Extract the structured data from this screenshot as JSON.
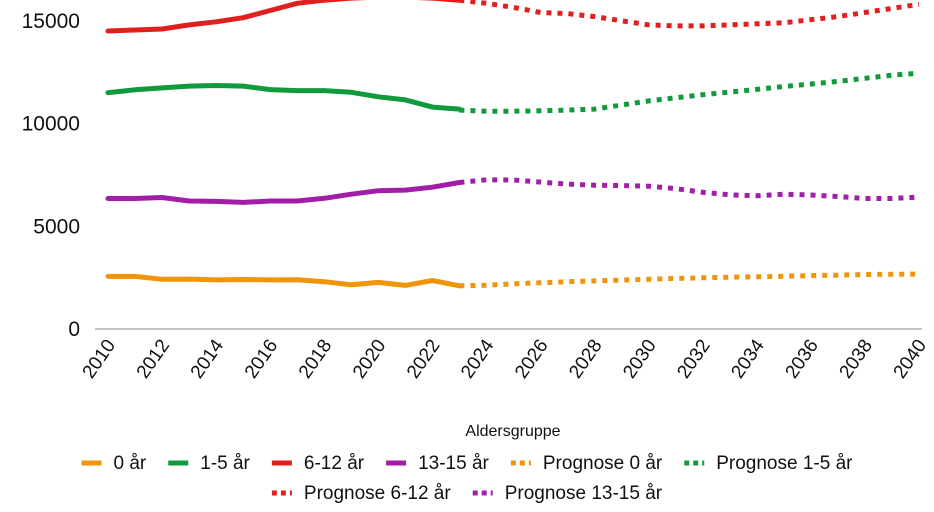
{
  "chart_data": {
    "type": "line",
    "xlabel": "Aldersgruppe",
    "ylabel": "",
    "xlim": [
      2010,
      2040
    ],
    "ylim": [
      0,
      16500
    ],
    "x_ticks": [
      "2010",
      "2012",
      "2014",
      "2016",
      "2018",
      "2020",
      "2022",
      "2024",
      "2026",
      "2028",
      "2030",
      "2032",
      "2034",
      "2036",
      "2038",
      "2040"
    ],
    "y_ticks": [
      "0",
      "5000",
      "10000",
      "15000"
    ],
    "grid": false,
    "legend_position": "bottom",
    "series": [
      {
        "name": "0 år",
        "color": "#f0940a",
        "style": "solid",
        "x": [
          2010,
          2011,
          2012,
          2013,
          2014,
          2015,
          2016,
          2017,
          2018,
          2019,
          2020,
          2021,
          2022,
          2023
        ],
        "values": [
          2560,
          2560,
          2420,
          2430,
          2390,
          2410,
          2390,
          2400,
          2300,
          2150,
          2270,
          2120,
          2360,
          2100
        ]
      },
      {
        "name": "1-5 år",
        "color": "#109a3c",
        "style": "solid",
        "x": [
          2010,
          2011,
          2012,
          2013,
          2014,
          2015,
          2016,
          2017,
          2018,
          2019,
          2020,
          2021,
          2022,
          2023
        ],
        "values": [
          11500,
          11640,
          11730,
          11820,
          11850,
          11820,
          11650,
          11600,
          11600,
          11520,
          11300,
          11150,
          10800,
          10700
        ]
      },
      {
        "name": "6-12 år",
        "color": "#e21f1f",
        "style": "solid",
        "x": [
          2010,
          2011,
          2012,
          2013,
          2014,
          2015,
          2016,
          2017,
          2018,
          2019,
          2020,
          2021,
          2022,
          2023
        ],
        "values": [
          14500,
          14550,
          14600,
          14800,
          14950,
          15150,
          15500,
          15850,
          16000,
          16100,
          16150,
          16150,
          16100,
          16000
        ]
      },
      {
        "name": "13-15 år",
        "color": "#a31ea8",
        "style": "solid",
        "x": [
          2010,
          2011,
          2012,
          2013,
          2014,
          2015,
          2016,
          2017,
          2018,
          2019,
          2020,
          2021,
          2022,
          2023
        ],
        "values": [
          6350,
          6350,
          6400,
          6230,
          6210,
          6160,
          6230,
          6230,
          6360,
          6560,
          6730,
          6760,
          6900,
          7130
        ]
      },
      {
        "name": "Prognose 0 år",
        "color": "#f0940a",
        "style": "dotted",
        "x": [
          2023,
          2024,
          2025,
          2026,
          2027,
          2028,
          2029,
          2030,
          2031,
          2032,
          2033,
          2034,
          2035,
          2036,
          2037,
          2038,
          2039,
          2040
        ],
        "values": [
          2100,
          2130,
          2200,
          2250,
          2300,
          2340,
          2380,
          2420,
          2460,
          2490,
          2520,
          2540,
          2570,
          2600,
          2620,
          2650,
          2660,
          2670
        ]
      },
      {
        "name": "Prognose 1-5 år",
        "color": "#109a3c",
        "style": "dotted",
        "x": [
          2023,
          2024,
          2025,
          2026,
          2027,
          2028,
          2029,
          2030,
          2031,
          2032,
          2033,
          2034,
          2035,
          2036,
          2037,
          2038,
          2039,
          2040
        ],
        "values": [
          10650,
          10600,
          10600,
          10620,
          10650,
          10700,
          10900,
          11100,
          11250,
          11400,
          11530,
          11660,
          11800,
          11920,
          12050,
          12200,
          12350,
          12450
        ]
      },
      {
        "name": "Prognose 6-12 år",
        "color": "#e21f1f",
        "style": "dotted",
        "x": [
          2023,
          2024,
          2025,
          2026,
          2027,
          2028,
          2029,
          2030,
          2031,
          2032,
          2033,
          2034,
          2035,
          2036,
          2037,
          2038,
          2039,
          2040
        ],
        "values": [
          16000,
          15850,
          15650,
          15400,
          15350,
          15200,
          15000,
          14800,
          14750,
          14750,
          14800,
          14850,
          14900,
          15050,
          15200,
          15400,
          15600,
          15800
        ]
      },
      {
        "name": "Prognose 13-15 år",
        "color": "#a31ea8",
        "style": "dotted",
        "x": [
          2023,
          2024,
          2025,
          2026,
          2027,
          2028,
          2029,
          2030,
          2031,
          2032,
          2033,
          2034,
          2035,
          2036,
          2037,
          2038,
          2039,
          2040
        ],
        "values": [
          7130,
          7260,
          7250,
          7150,
          7050,
          7000,
          6980,
          6950,
          6830,
          6650,
          6530,
          6480,
          6560,
          6520,
          6450,
          6350,
          6350,
          6420
        ]
      }
    ]
  }
}
